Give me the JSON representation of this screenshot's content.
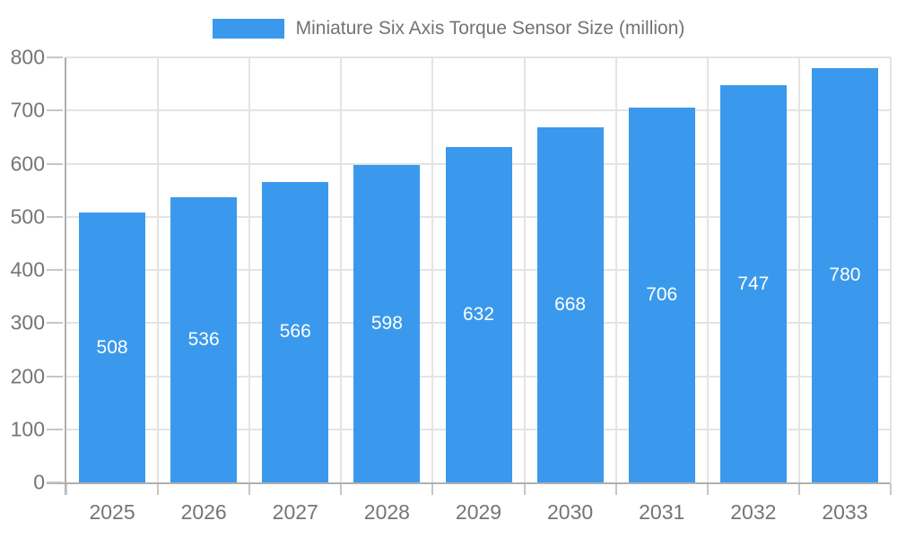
{
  "chart": {
    "legend": {
      "label": "Miniature Six Axis Torque Sensor Size (million)"
    },
    "colors": {
      "bar": "#3A99EC",
      "grid": "#E4E4E4",
      "axis_line": "#AFAFAF",
      "tick": "#C6C6C6",
      "axis_label": "#757575",
      "bar_label": "#FFFFFF"
    }
  },
  "chart_data": {
    "type": "bar",
    "title": "Miniature Six Axis Torque Sensor Size (million)",
    "categories": [
      "2025",
      "2026",
      "2027",
      "2028",
      "2029",
      "2030",
      "2031",
      "2032",
      "2033"
    ],
    "series": [
      {
        "name": "Miniature Six Axis Torque Sensor Size (million)",
        "values": [
          508,
          536,
          566,
          598,
          632,
          668,
          706,
          747,
          780
        ]
      }
    ],
    "xlabel": "",
    "ylabel": "",
    "ylim": [
      0,
      800
    ],
    "ytick_step": 100,
    "ytick_labels": [
      "0",
      "100",
      "200",
      "300",
      "400",
      "500",
      "600",
      "700",
      "800"
    ],
    "grid": true,
    "vertical_grid": true,
    "legend_position": "top-center",
    "bar_labels": [
      "508",
      "536",
      "566",
      "598",
      "632",
      "668",
      "706",
      "747",
      "780"
    ],
    "bar_labels_position": "inside-center"
  }
}
